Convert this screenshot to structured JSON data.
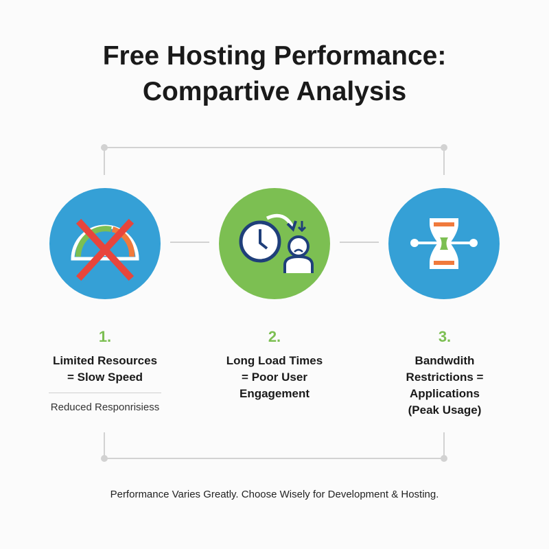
{
  "title": {
    "line1": "Free Hosting Performance:",
    "line2": "Compartive Analysis"
  },
  "colors": {
    "blue": "#35a0d6",
    "green": "#7cbf52",
    "orange": "#f07a3c",
    "red": "#e8453c",
    "navy": "#1f3f7a"
  },
  "steps": [
    {
      "number": "1.",
      "lines": [
        "Limited Resources",
        "= Slow Speed"
      ],
      "sub": "Reduced Responrisiess",
      "icon": "crossed-speedometer-icon"
    },
    {
      "number": "2.",
      "lines": [
        "Long Load Times",
        "= Poor User",
        "Engagement"
      ],
      "icon": "clock-sad-user-icon"
    },
    {
      "number": "3.",
      "lines": [
        "Bandwdith",
        "Restrictions =",
        "Applications",
        "(Peak Usage)"
      ],
      "icon": "bottleneck-hourglass-icon"
    }
  ],
  "footer": "Performance Varies Greatly. Choose Wisely for Development & Hosting."
}
